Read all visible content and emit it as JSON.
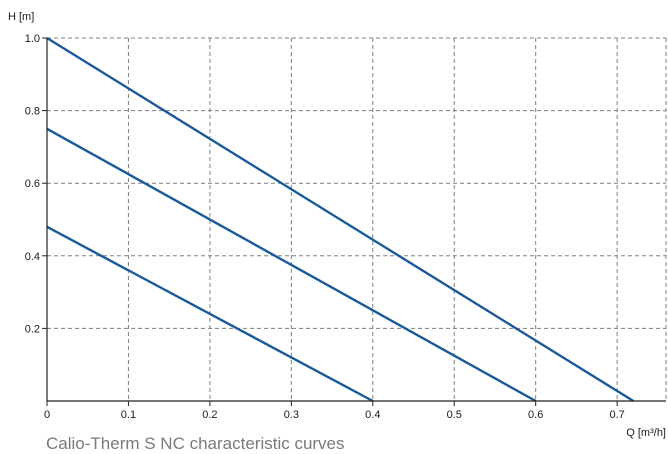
{
  "caption": "Calio-Therm S NC characteristic curves",
  "colors": {
    "line": "#1a5a9a",
    "grid": "#7f7f7f",
    "axis": "#222222"
  },
  "chart_data": {
    "type": "line",
    "title": "",
    "xlabel": "Q [m³/h]",
    "ylabel": "H [m]",
    "xlim": [
      0,
      0.76
    ],
    "ylim": [
      0,
      1.0
    ],
    "x_ticks": [
      0,
      0.1,
      0.2,
      0.3,
      0.4,
      0.5,
      0.6,
      0.7
    ],
    "x_tick_labels": [
      "0",
      "0.1",
      "0.2",
      "0.3",
      "0.4",
      "0.5",
      "0.6",
      "0.7"
    ],
    "y_ticks": [
      0.2,
      0.4,
      0.6,
      0.8,
      1.0
    ],
    "y_tick_labels": [
      "0.2",
      "0.4",
      "0.6",
      "0.8",
      "1.0"
    ],
    "grid": true,
    "series": [
      {
        "x": [
          0,
          0.72
        ],
        "y": [
          1.0,
          0.0
        ]
      },
      {
        "x": [
          0,
          0.6
        ],
        "y": [
          0.75,
          0.0
        ]
      },
      {
        "x": [
          0,
          0.4
        ],
        "y": [
          0.48,
          0.0
        ]
      }
    ]
  }
}
